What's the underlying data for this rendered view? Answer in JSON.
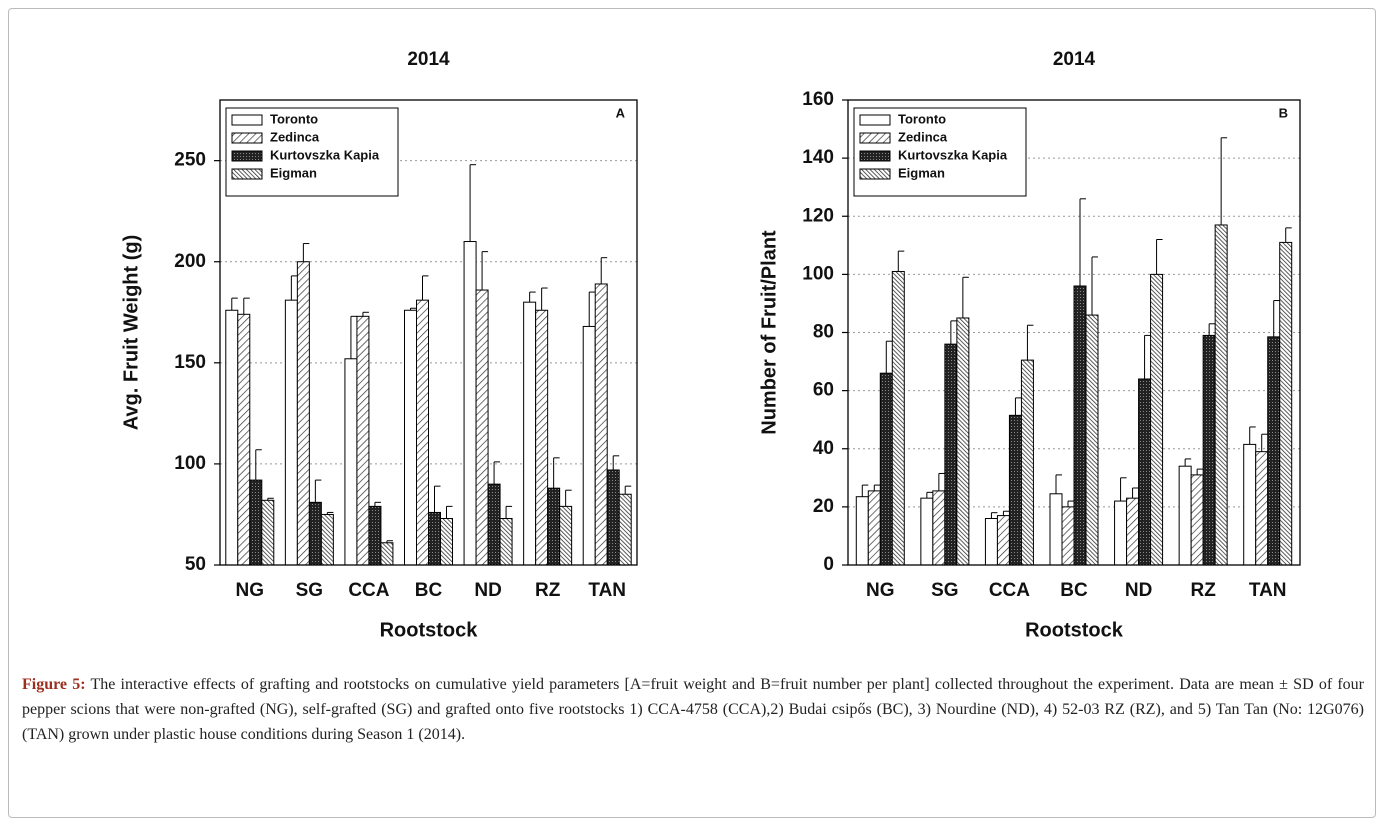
{
  "chart_data": [
    {
      "type": "bar",
      "title": "2014",
      "annotation": "A",
      "x_label": "Rootstock",
      "y_label": "Avg. Fruit Weight (g)",
      "categories": [
        "NG",
        "SG",
        "CCA",
        "BC",
        "ND",
        "RZ",
        "TAN"
      ],
      "series": [
        {
          "name": "Toronto",
          "color": "#ffffff",
          "pattern": "none",
          "values": [
            176,
            181,
            152,
            176,
            210,
            180,
            168
          ],
          "errors": [
            6,
            12,
            21,
            1,
            38,
            5,
            17
          ]
        },
        {
          "name": "Zedinca",
          "color": "#ffffff",
          "pattern": "diagonal",
          "values": [
            174,
            200,
            173,
            181,
            186,
            176,
            189
          ],
          "errors": [
            8,
            9,
            2,
            12,
            19,
            11,
            13
          ]
        },
        {
          "name": "Kurtovszka Kapia",
          "color": "#222222",
          "pattern": "crosshatch",
          "values": [
            92,
            81,
            79,
            76,
            90,
            88,
            97
          ],
          "errors": [
            15,
            11,
            2,
            13,
            11,
            15,
            7
          ]
        },
        {
          "name": "Eigman",
          "color": "#ffffff",
          "pattern": "dense-diagonal",
          "values": [
            82,
            75,
            61,
            73,
            73,
            79,
            85
          ],
          "errors": [
            1,
            1,
            1,
            6,
            6,
            8,
            4
          ]
        }
      ],
      "ylim": [
        50,
        280
      ],
      "yticks": [
        50,
        100,
        150,
        200,
        250
      ],
      "grid": true,
      "legend": "upper left"
    },
    {
      "type": "bar",
      "title": "2014",
      "annotation": "B",
      "x_label": "Rootstock",
      "y_label": "Number of Fruit/Plant",
      "categories": [
        "NG",
        "SG",
        "CCA",
        "BC",
        "ND",
        "RZ",
        "TAN"
      ],
      "series": [
        {
          "name": "Toronto",
          "color": "#ffffff",
          "pattern": "none",
          "values": [
            23.5,
            23,
            16,
            24.5,
            22,
            34,
            41.5
          ],
          "errors": [
            4,
            2,
            2,
            6.5,
            8,
            2.5,
            6
          ]
        },
        {
          "name": "Zedinca",
          "color": "#ffffff",
          "pattern": "diagonal",
          "values": [
            25.5,
            25.5,
            17,
            20,
            23,
            31,
            39
          ],
          "errors": [
            2,
            6,
            1.5,
            2,
            3.5,
            2,
            6
          ]
        },
        {
          "name": "Kurtovszka Kapia",
          "color": "#222222",
          "pattern": "crosshatch",
          "values": [
            66,
            76,
            51.5,
            96,
            64,
            79,
            78.5
          ],
          "errors": [
            11,
            8,
            6,
            30,
            15,
            4,
            12.5
          ]
        },
        {
          "name": "Eigman",
          "color": "#ffffff",
          "pattern": "dense-diagonal",
          "values": [
            101,
            85,
            70.5,
            86,
            100,
            117,
            111
          ],
          "errors": [
            7,
            14,
            12,
            20,
            12,
            30,
            5
          ]
        }
      ],
      "ylim": [
        0,
        160
      ],
      "yticks": [
        0,
        20,
        40,
        60,
        80,
        100,
        120,
        140,
        160
      ],
      "grid": true,
      "legend": "upper left"
    }
  ],
  "caption": {
    "label": "Figure 5:",
    "text": "The interactive effects of grafting and rootstocks on cumulative yield parameters [A=fruit weight and B=fruit number per plant] collected throughout the experiment. Data are mean ± SD of four pepper scions that were non-grafted (NG), self-grafted (SG) and grafted onto five rootstocks 1) CCA-4758 (CCA),2) Budai csipős (BC), 3) Nourdine (ND), 4) 52-03 RZ (RZ), and 5) Tan Tan (No: 12G076) (TAN) grown under plastic house conditions during Season 1 (2014)."
  }
}
